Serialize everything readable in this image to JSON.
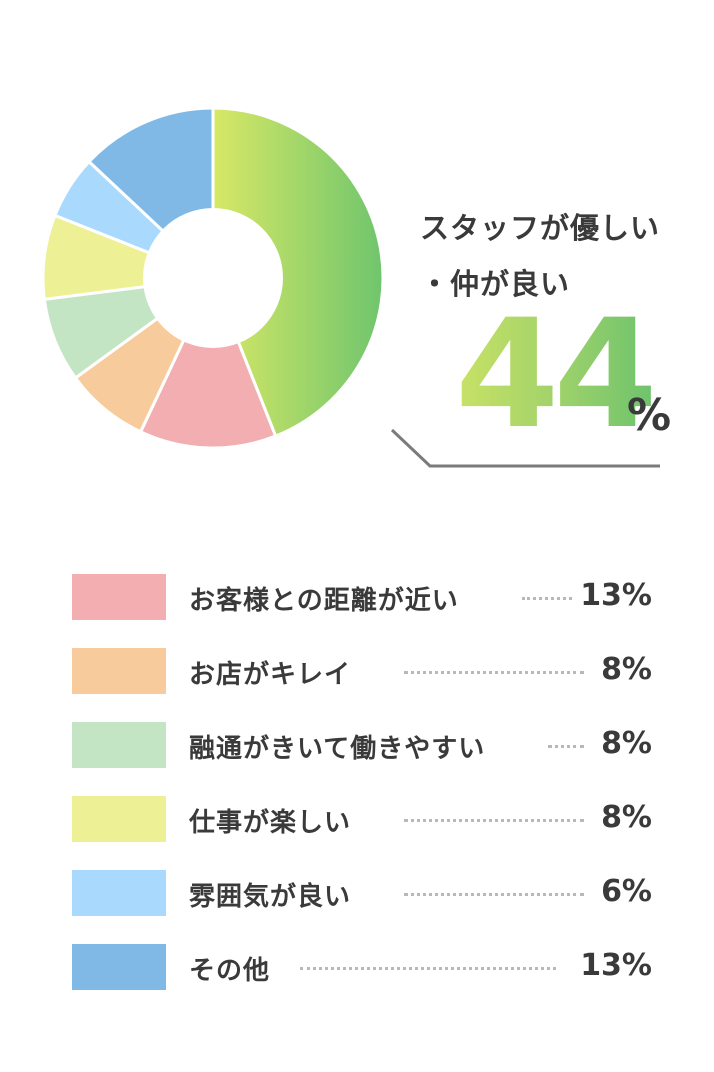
{
  "highlight": {
    "title_line1": "スタッフが優しい",
    "title_line2": "・仲が良い",
    "value": "44",
    "unit": "%"
  },
  "chart_data": {
    "type": "pie",
    "donut": true,
    "slices": [
      {
        "label": "スタッフが優しい・仲が良い",
        "value": 44,
        "color": "#a3d46a",
        "gradient": [
          "#d8e866",
          "#6fc56d"
        ]
      },
      {
        "label": "お客様との距離が近い",
        "value": 13,
        "color": "#f2aeb0"
      },
      {
        "label": "お店がキレイ",
        "value": 8,
        "color": "#f8cb9d"
      },
      {
        "label": "融通がきいて働きやすい",
        "value": 8,
        "color": "#c4e5c4"
      },
      {
        "label": "仕事が楽しい",
        "value": 8,
        "color": "#edf094"
      },
      {
        "label": "雰囲気が良い",
        "value": 6,
        "color": "#a9dafd"
      },
      {
        "label": "その他",
        "value": 13,
        "color": "#80b9e6"
      }
    ]
  },
  "legend": [
    {
      "label": "お客様との距離が近い",
      "value": "13%",
      "color": "#f2aeb0"
    },
    {
      "label": "お店がキレイ",
      "value": "8%",
      "color": "#f8cb9d"
    },
    {
      "label": "融通がきいて働きやすい",
      "value": "8%",
      "color": "#c4e5c4"
    },
    {
      "label": "仕事が楽しい",
      "value": "8%",
      "color": "#edf094"
    },
    {
      "label": "雰囲気が良い",
      "value": "6%",
      "color": "#a9dafd"
    },
    {
      "label": "その他",
      "value": "13%",
      "color": "#80b9e6"
    }
  ]
}
